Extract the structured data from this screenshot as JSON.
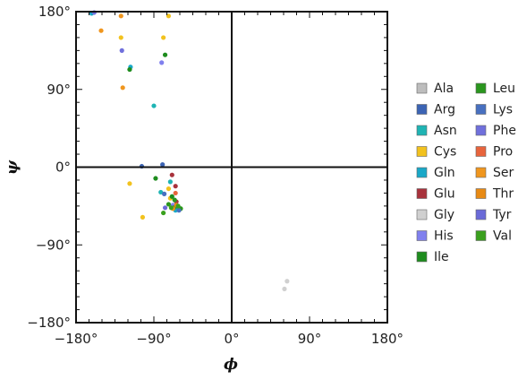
{
  "chart_data": {
    "type": "scatter",
    "title": "",
    "xlabel": "ϕ",
    "ylabel": "ψ",
    "xlim": [
      -180,
      180
    ],
    "ylim": [
      -180,
      180
    ],
    "x_ticks": [
      -180,
      -90,
      0,
      90,
      180
    ],
    "y_ticks": [
      -180,
      -90,
      0,
      90,
      180
    ],
    "x_tick_labels": [
      "−180°",
      "−90°",
      "0°",
      "90°",
      "180°"
    ],
    "y_tick_labels": [
      "−180°",
      "−90°",
      "0°",
      "90°",
      "180°"
    ],
    "grid": false,
    "zero_lines": true,
    "legend_position": "right",
    "series": [
      {
        "name": "Ala",
        "color": "#bdbdbd",
        "points": []
      },
      {
        "name": "Arg",
        "color": "#3c64b4",
        "points": [
          [
            -104,
            1
          ],
          [
            -80,
            3
          ],
          [
            -64,
            -49
          ]
        ]
      },
      {
        "name": "Asn",
        "color": "#1fb4b4",
        "points": [
          [
            -90,
            71
          ],
          [
            -82,
            -29
          ],
          [
            -71,
            -17
          ],
          [
            -62,
            -48
          ]
        ]
      },
      {
        "name": "Cys",
        "color": "#f2c21e",
        "points": [
          [
            -128,
            150
          ],
          [
            -79,
            150
          ],
          [
            -73,
            175
          ],
          [
            -118,
            -19
          ],
          [
            -73,
            -25
          ],
          [
            -71,
            -36
          ],
          [
            -103,
            -58
          ]
        ]
      },
      {
        "name": "Gln",
        "color": "#19a8c8",
        "points": [
          [
            -162,
            178
          ],
          [
            -117,
            116
          ],
          [
            -65,
            -50
          ]
        ]
      },
      {
        "name": "Glu",
        "color": "#a8323c",
        "points": [
          [
            -69,
            -9
          ],
          [
            -65,
            -22
          ],
          [
            -64,
            -40
          ]
        ]
      },
      {
        "name": "Gly",
        "color": "#d0d0d0",
        "points": [
          [
            64,
            -132
          ],
          [
            61,
            -141
          ]
        ]
      },
      {
        "name": "His",
        "color": "#8080ee",
        "points": [
          [
            -81,
            121
          ],
          [
            -68,
            -44
          ]
        ]
      },
      {
        "name": "Ile",
        "color": "#1e8c1e",
        "points": [
          [
            -77,
            130
          ],
          [
            -118,
            113
          ],
          [
            -88,
            -13
          ],
          [
            -69,
            -34
          ],
          [
            -67,
            -47
          ]
        ]
      },
      {
        "name": "Leu",
        "color": "#2a961e",
        "points": [
          [
            -73,
            -43
          ],
          [
            -66,
            -38
          ],
          [
            -63,
            -45
          ],
          [
            -59,
            -48
          ]
        ]
      },
      {
        "name": "Lys",
        "color": "#4870c0",
        "points": [
          [
            -78,
            -31
          ],
          [
            -61,
            -50
          ]
        ]
      },
      {
        "name": "Phe",
        "color": "#7070dc",
        "points": [
          [
            -159,
            179
          ],
          [
            -127,
            135
          ]
        ]
      },
      {
        "name": "Pro",
        "color": "#e8643c",
        "points": [
          [
            -65,
            -30
          ]
        ]
      },
      {
        "name": "Ser",
        "color": "#f0961e",
        "points": [
          [
            -128,
            175
          ],
          [
            -151,
            158
          ],
          [
            -126,
            92
          ],
          [
            -68,
            -48
          ]
        ]
      },
      {
        "name": "Thr",
        "color": "#e88a14",
        "points": [
          [
            -64,
            -44
          ]
        ]
      },
      {
        "name": "Tyr",
        "color": "#6a6ad8",
        "points": [
          [
            -77,
            -47
          ]
        ]
      },
      {
        "name": "Val",
        "color": "#3aa01e",
        "points": [
          [
            -79,
            -53
          ],
          [
            -70,
            -47
          ],
          [
            -62,
            -45
          ]
        ]
      }
    ]
  }
}
